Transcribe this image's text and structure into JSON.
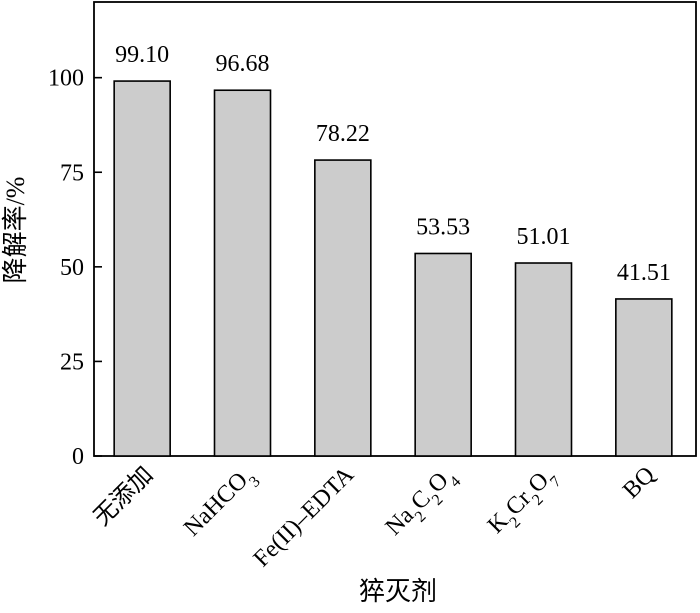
{
  "chart_data": {
    "type": "bar",
    "title": "",
    "xlabel": "猝灭剂",
    "ylabel": "降解率/%",
    "ylim": [
      0,
      120
    ],
    "yticks": [
      0,
      25,
      50,
      75,
      100
    ],
    "categories": [
      {
        "main": "无添加",
        "parts": [
          {
            "t": "无添加",
            "sub": false
          }
        ]
      },
      {
        "main": "NaHCO3",
        "parts": [
          {
            "t": "NaHCO",
            "sub": false
          },
          {
            "t": "3",
            "sub": true
          }
        ]
      },
      {
        "main": "Fe(II)-EDTA",
        "parts": [
          {
            "t": "Fe(II)–EDTA",
            "sub": false
          }
        ]
      },
      {
        "main": "Na2C2O4",
        "parts": [
          {
            "t": "Na",
            "sub": false
          },
          {
            "t": "2",
            "sub": true
          },
          {
            "t": "C",
            "sub": false
          },
          {
            "t": "2",
            "sub": true
          },
          {
            "t": "O",
            "sub": false
          },
          {
            "t": "4",
            "sub": true
          }
        ]
      },
      {
        "main": "K2Cr2O7",
        "parts": [
          {
            "t": "K",
            "sub": false
          },
          {
            "t": "2",
            "sub": true
          },
          {
            "t": "Cr",
            "sub": false
          },
          {
            "t": "2",
            "sub": true
          },
          {
            "t": "O",
            "sub": false
          },
          {
            "t": "7",
            "sub": true
          }
        ]
      },
      {
        "main": "BQ",
        "parts": [
          {
            "t": "BQ",
            "sub": false
          }
        ]
      }
    ],
    "values": [
      99.1,
      96.68,
      78.22,
      53.53,
      51.01,
      41.51
    ],
    "data_labels": [
      "99.10",
      "96.68",
      "78.22",
      "53.53",
      "51.01",
      "41.51"
    ],
    "bar_color": "#cccccc",
    "grid": false
  }
}
